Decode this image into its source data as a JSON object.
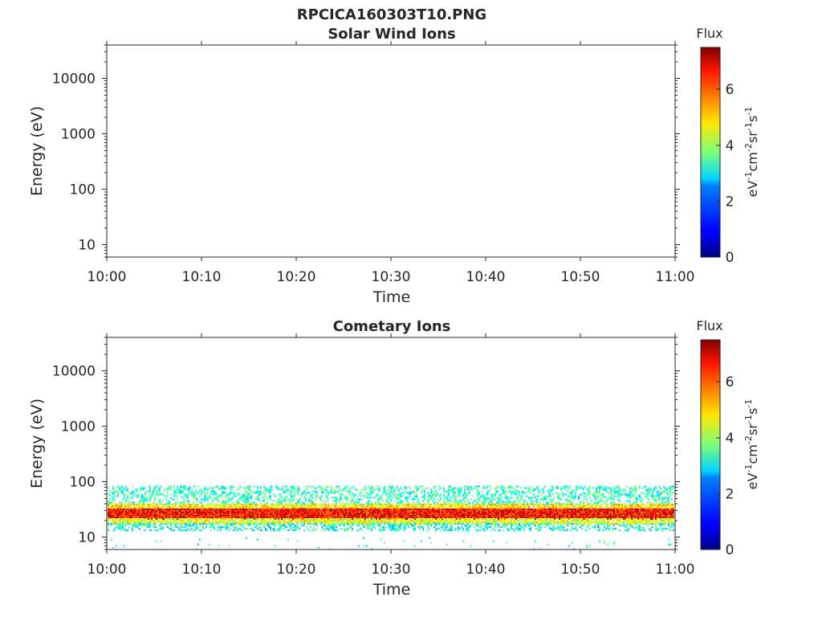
{
  "figure": {
    "title": "RPCICA160303T10.PNG"
  },
  "chart_data": [
    {
      "type": "heatmap",
      "title": "Solar Wind Ions",
      "xlabel": "Time",
      "ylabel": "Energy (eV)",
      "x_ticks": [
        "10:00",
        "10:10",
        "10:20",
        "10:30",
        "10:40",
        "10:50",
        "11:00"
      ],
      "xlim": [
        "10:00",
        "11:00"
      ],
      "y_scale": "log",
      "y_ticks": [
        "10",
        "100",
        "1000",
        "10000"
      ],
      "ylim": [
        6,
        40000
      ],
      "colorbar": {
        "title": "Flux",
        "label": "eV-1cm-2sr-1s-1",
        "label_base": [
          "eV",
          "cm",
          "sr",
          "s"
        ],
        "label_exp": [
          "-1",
          "-2",
          "-1",
          "-1"
        ],
        "ticks": [
          "0",
          "2",
          "4",
          "6"
        ],
        "range": [
          0,
          7.5
        ],
        "colormap": "jet"
      },
      "bands": []
    },
    {
      "type": "heatmap",
      "title": "Cometary Ions",
      "xlabel": "Time",
      "ylabel": "Energy (eV)",
      "x_ticks": [
        "10:00",
        "10:10",
        "10:20",
        "10:30",
        "10:40",
        "10:50",
        "11:00"
      ],
      "xlim": [
        "10:00",
        "11:00"
      ],
      "y_scale": "log",
      "y_ticks": [
        "10",
        "100",
        "1000",
        "10000"
      ],
      "ylim": [
        6,
        40000
      ],
      "colorbar": {
        "title": "Flux",
        "label": "eV-1cm-2sr-1s-1",
        "label_base": [
          "eV",
          "cm",
          "sr",
          "s"
        ],
        "label_exp": [
          "-1",
          "-2",
          "-1",
          "-1"
        ],
        "ticks": [
          "0",
          "2",
          "4",
          "6"
        ],
        "range": [
          0,
          7.5
        ],
        "colormap": "jet"
      },
      "bands": [
        {
          "energy_range": [
            40,
            85
          ],
          "flux": 3.2,
          "coverage": "sparse"
        },
        {
          "energy_range": [
            33,
            40
          ],
          "flux": 4.8,
          "coverage": "dense"
        },
        {
          "energy_range": [
            22,
            33
          ],
          "flux": 6.5,
          "coverage": "continuous"
        },
        {
          "energy_range": [
            18,
            22
          ],
          "flux": 4.5,
          "coverage": "dense"
        },
        {
          "energy_range": [
            13,
            18
          ],
          "flux": 3.0,
          "coverage": "sparse"
        },
        {
          "energy_range": [
            6,
            10
          ],
          "flux": 3.0,
          "coverage": "rare"
        }
      ]
    }
  ]
}
